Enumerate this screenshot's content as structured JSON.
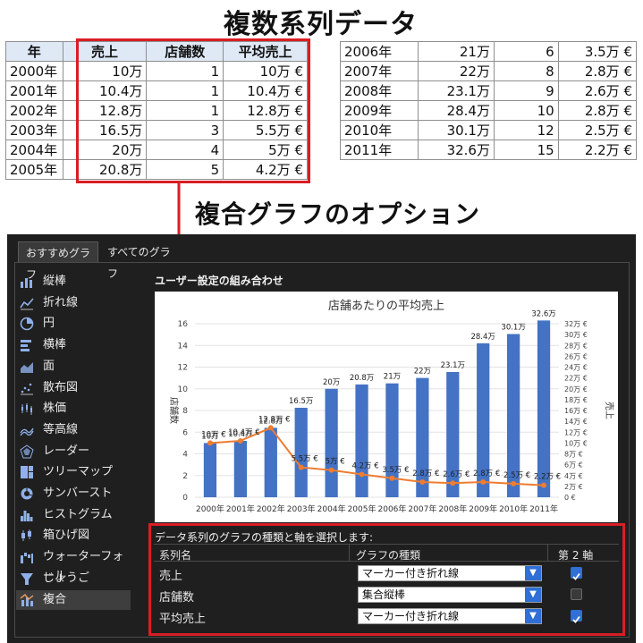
{
  "page_title": "複数系列データ",
  "combo_title": "複合グラフのオプション",
  "table_left": {
    "headers": [
      "年",
      "売上",
      "店舗数",
      "平均売上"
    ],
    "rows": [
      [
        "2000年",
        "10万",
        "1",
        "10万 €"
      ],
      [
        "2001年",
        "10.4万",
        "1",
        "10.4万 €"
      ],
      [
        "2002年",
        "12.8万",
        "1",
        "12.8万 €"
      ],
      [
        "2003年",
        "16.5万",
        "3",
        "5.5万 €"
      ],
      [
        "2004年",
        "20万",
        "4",
        "5万 €"
      ],
      [
        "2005年",
        "20.8万",
        "5",
        "4.2万 €"
      ]
    ]
  },
  "table_right": {
    "rows": [
      [
        "2006年",
        "21万",
        "6",
        "3.5万 €"
      ],
      [
        "2007年",
        "22万",
        "8",
        "2.8万 €"
      ],
      [
        "2008年",
        "23.1万",
        "9",
        "2.6万 €"
      ],
      [
        "2009年",
        "28.4万",
        "10",
        "2.8万 €"
      ],
      [
        "2010年",
        "30.1万",
        "12",
        "2.5万 €"
      ],
      [
        "2011年",
        "32.6万",
        "15",
        "2.2万 €"
      ]
    ]
  },
  "dialog": {
    "tabs": [
      "おすすめグラフ",
      "すべてのグラフ"
    ],
    "sidebar": [
      {
        "label": "縦棒",
        "icon": "column-chart-icon"
      },
      {
        "label": "折れ線",
        "icon": "line-chart-icon"
      },
      {
        "label": "円",
        "icon": "pie-chart-icon"
      },
      {
        "label": "横棒",
        "icon": "bar-chart-icon"
      },
      {
        "label": "面",
        "icon": "area-chart-icon"
      },
      {
        "label": "散布図",
        "icon": "scatter-chart-icon"
      },
      {
        "label": "株価",
        "icon": "stock-chart-icon"
      },
      {
        "label": "等高線",
        "icon": "surface-chart-icon"
      },
      {
        "label": "レーダー",
        "icon": "radar-chart-icon"
      },
      {
        "label": "ツリーマップ",
        "icon": "treemap-chart-icon"
      },
      {
        "label": "サンバースト",
        "icon": "sunburst-chart-icon"
      },
      {
        "label": "ヒストグラム",
        "icon": "histogram-chart-icon"
      },
      {
        "label": "箱ひげ図",
        "icon": "box-whisker-chart-icon"
      },
      {
        "label": "ウォーターフォール",
        "icon": "waterfall-chart-icon"
      },
      {
        "label": "じょうご",
        "icon": "funnel-chart-icon"
      },
      {
        "label": "複合",
        "icon": "combo-chart-icon"
      }
    ],
    "selected_type": "複合",
    "preview_heading": "ユーザー設定の組み合わせ",
    "series_section": {
      "heading": "データ系列のグラフの種類と軸を選択します:",
      "col_name": "系列名",
      "col_type": "グラフの種類",
      "col_axis": "第 2 軸",
      "rows": [
        {
          "name": "売上",
          "type": "マーカー付き折れ線",
          "secondary": true
        },
        {
          "name": "店舗数",
          "type": "集合縦棒",
          "secondary": false
        },
        {
          "name": "平均売上",
          "type": "マーカー付き折れ線",
          "secondary": true
        }
      ]
    }
  },
  "colors": {
    "bar": "#4472c4",
    "line": "#ed7d31",
    "accent_red": "#d81e24",
    "dialog_bg": "#1f1f1f"
  },
  "chart_data": {
    "type": "bar",
    "title": "店舗あたりの平均売上",
    "categories": [
      "2000年",
      "2001年",
      "2002年",
      "2003年",
      "2004年",
      "2005年",
      "2006年",
      "2007年",
      "2008年",
      "2009年",
      "2010年",
      "2011年"
    ],
    "ylabel": "店舗数",
    "y2label": "売上",
    "ylim": [
      0,
      16
    ],
    "y_ticks": [
      "0",
      "2",
      "4",
      "6",
      "8",
      "10",
      "12",
      "14",
      "16"
    ],
    "y2lim": [
      0,
      32
    ],
    "y2_ticks": [
      "0 €",
      "2万 €",
      "4万 €",
      "6万 €",
      "8万 €",
      "10万 €",
      "12万 €",
      "14万 €",
      "16万 €",
      "18万 €",
      "20万 €",
      "22万 €",
      "24万 €",
      "26万 €",
      "28万 €",
      "30万 €",
      "32万 €"
    ],
    "series": [
      {
        "type": "bar",
        "axis": "secondary",
        "values": [
          10,
          10.4,
          12.8,
          16.5,
          20,
          20.8,
          21,
          22,
          23.1,
          28.4,
          30.1,
          32.6
        ],
        "labels": [
          "10万",
          "10.4万",
          "12.8万",
          "16.5万",
          "20万",
          "20.8万",
          "21万",
          "22万",
          "23.1万",
          "28.4万",
          "30.1万",
          "32.6万"
        ]
      },
      {
        "type": "line",
        "axis": "secondary",
        "values": [
          10,
          10.4,
          12.8,
          5.5,
          5,
          4.2,
          3.5,
          2.8,
          2.6,
          2.8,
          2.5,
          2.2
        ],
        "labels": [
          "10万 €",
          "10.4万 €",
          "12.8万 €",
          "5.5万 €",
          "5万 €",
          "4.2万 €",
          "3.5万 €",
          "2.8万 €",
          "2.6万 €",
          "2.8万 €",
          "2.5万 €",
          "2.2万 €"
        ]
      }
    ]
  }
}
